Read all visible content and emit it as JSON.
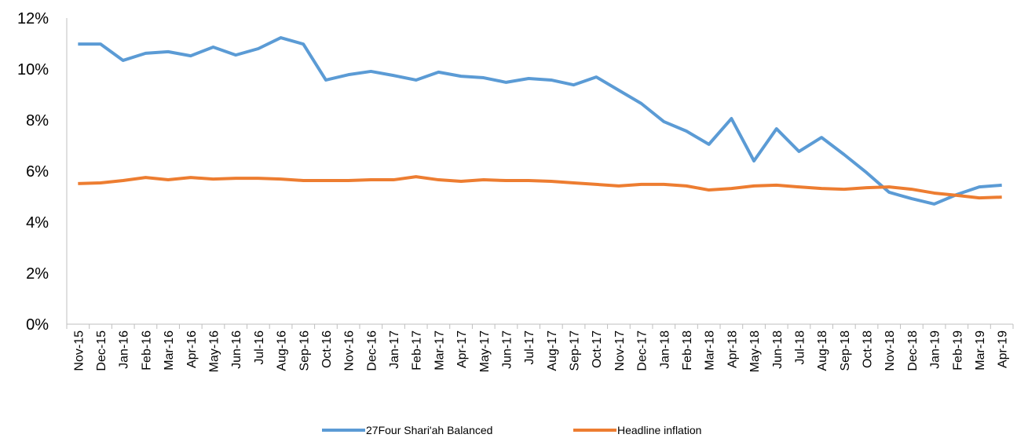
{
  "chart_data": {
    "type": "line",
    "categories": [
      "Nov-15",
      "Dec-15",
      "Jan-16",
      "Feb-16",
      "Mar-16",
      "Apr-16",
      "May-16",
      "Jun-16",
      "Jul-16",
      "Aug-16",
      "Sep-16",
      "Oct-16",
      "Nov-16",
      "Dec-16",
      "Jan-17",
      "Feb-17",
      "Mar-17",
      "Apr-17",
      "May-17",
      "Jun-17",
      "Jul-17",
      "Aug-17",
      "Sep-17",
      "Oct-17",
      "Nov-17",
      "Dec-17",
      "Jan-18",
      "Feb-18",
      "Mar-18",
      "Apr-18",
      "May-18",
      "Jun-18",
      "Jul-18",
      "Aug-18",
      "Sep-18",
      "Oct-18",
      "Nov-18",
      "Dec-18",
      "Jan-19",
      "Feb-19",
      "Mar-19",
      "Apr-19"
    ],
    "series": [
      {
        "name": "27Four Shari'ah Balanced",
        "color": "#5b9bd5",
        "values": [
          10.98,
          10.98,
          10.34,
          10.62,
          10.68,
          10.52,
          10.86,
          10.55,
          10.8,
          11.23,
          10.98,
          9.57,
          9.78,
          9.91,
          9.75,
          9.57,
          9.88,
          9.72,
          9.66,
          9.48,
          9.63,
          9.57,
          9.38,
          9.69,
          9.17,
          8.65,
          7.94,
          7.57,
          7.05,
          8.06,
          6.4,
          7.66,
          6.77,
          7.32,
          6.65,
          5.94,
          5.17,
          4.92,
          4.71,
          5.08,
          5.38,
          5.45
        ]
      },
      {
        "name": "Headline inflation",
        "color": "#ed7d31",
        "values": [
          5.51,
          5.54,
          5.63,
          5.75,
          5.66,
          5.75,
          5.69,
          5.72,
          5.72,
          5.69,
          5.63,
          5.63,
          5.63,
          5.66,
          5.66,
          5.78,
          5.66,
          5.6,
          5.66,
          5.63,
          5.63,
          5.6,
          5.54,
          5.48,
          5.42,
          5.48,
          5.48,
          5.42,
          5.26,
          5.32,
          5.42,
          5.45,
          5.38,
          5.32,
          5.29,
          5.35,
          5.38,
          5.29,
          5.14,
          5.05,
          4.95,
          4.98
        ]
      }
    ],
    "ylim": [
      0,
      12
    ],
    "yticks": [
      {
        "value": 0,
        "label": "0%"
      },
      {
        "value": 2,
        "label": "2%"
      },
      {
        "value": 4,
        "label": "4%"
      },
      {
        "value": 6,
        "label": "6%"
      },
      {
        "value": 8,
        "label": "8%"
      },
      {
        "value": 10,
        "label": "10%"
      },
      {
        "value": 12,
        "label": "12%"
      }
    ],
    "grid": false,
    "legend": "bottom"
  }
}
